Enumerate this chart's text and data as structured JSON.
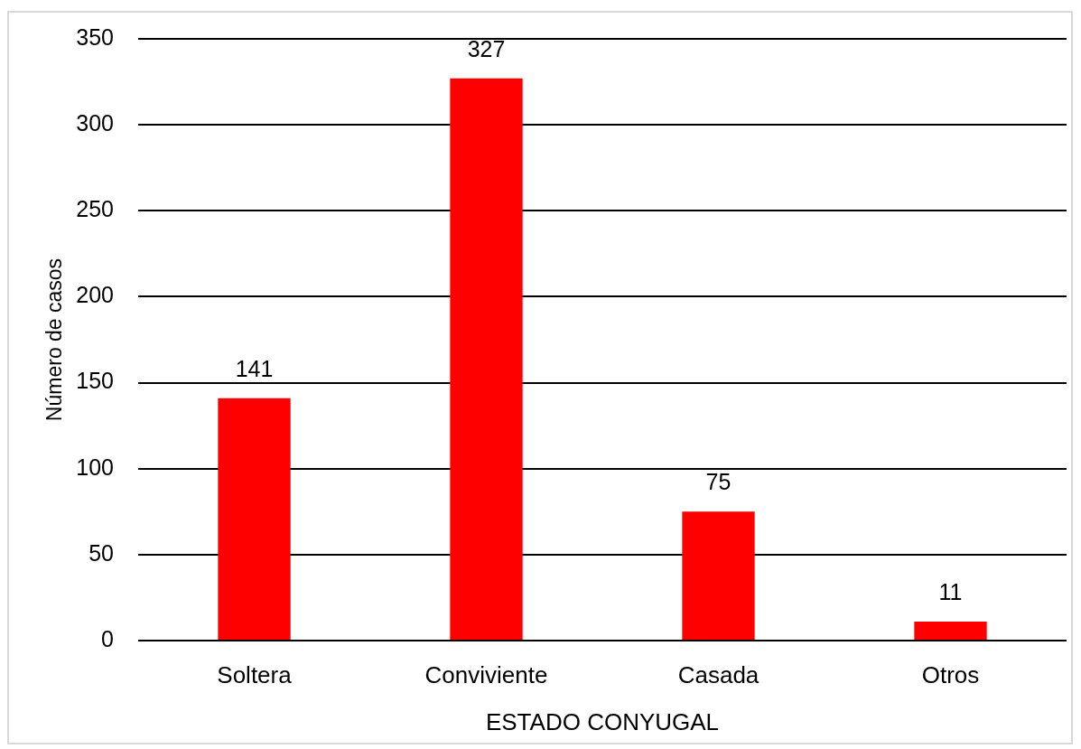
{
  "chart_data": {
    "type": "bar",
    "xlabel": "ESTADO CONYUGAL",
    "ylabel": "Número de casos",
    "categories": [
      "Soltera",
      "Conviviente",
      "Casada",
      "Otros"
    ],
    "values": [
      141,
      327,
      75,
      11
    ],
    "color": "#ff0000",
    "ylim": [
      0,
      350
    ],
    "yticks": [
      0,
      50,
      100,
      150,
      200,
      250,
      300,
      350
    ],
    "grid": "y",
    "data_labels": true
  }
}
